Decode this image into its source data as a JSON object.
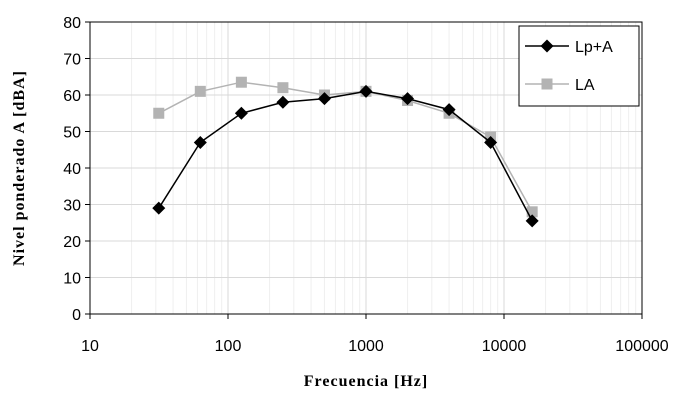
{
  "chart_data": {
    "type": "line",
    "title": "",
    "xlabel": "Frecuencia [Hz]",
    "ylabel": "Nivel ponderado A [dBA]",
    "x_scale": "log",
    "xlim": [
      10,
      100000
    ],
    "ylim": [
      0,
      80
    ],
    "x_ticks": [
      "10",
      "100",
      "1000",
      "10000",
      "100000"
    ],
    "y_ticks": [
      "0",
      "10",
      "20",
      "30",
      "40",
      "50",
      "60",
      "70",
      "80"
    ],
    "grid": true,
    "legend_position": "top-right",
    "x": [
      31.5,
      63,
      125,
      250,
      500,
      1000,
      2000,
      4000,
      8000,
      16000
    ],
    "series": [
      {
        "name": "Lp+A",
        "color": "#000000",
        "marker": "diamond",
        "values": [
          29,
          47,
          55,
          58,
          59,
          61,
          59,
          56,
          47,
          25.5
        ]
      },
      {
        "name": "LA",
        "color": "#b3b3b3",
        "marker": "square",
        "values": [
          55,
          61,
          63.5,
          62,
          60,
          61,
          58.5,
          55,
          48.5,
          28
        ]
      }
    ]
  }
}
